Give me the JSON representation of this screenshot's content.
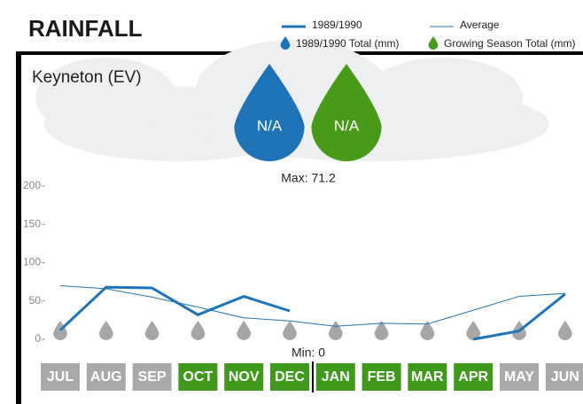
{
  "chart_data": {
    "type": "line",
    "title": "RAINFALL",
    "subtitle": "Keyneton (EV)",
    "categories": [
      "JUL",
      "AUG",
      "SEP",
      "OCT",
      "NOV",
      "DEC",
      "JAN",
      "FEB",
      "MAR",
      "APR",
      "MAY",
      "JUN"
    ],
    "category_colors": [
      "#a9a9a9",
      "#a9a9a9",
      "#a9a9a9",
      "#3f9a1c",
      "#3f9a1c",
      "#3f9a1c",
      "#3f9a1c",
      "#3f9a1c",
      "#3f9a1c",
      "#3f9a1c",
      "#a9a9a9",
      "#a9a9a9"
    ],
    "series": [
      {
        "name": "1989/1990",
        "color": "#1f73b7",
        "width": 3,
        "values": [
          12,
          68,
          67,
          32,
          56,
          37,
          null,
          null,
          null,
          0,
          11,
          59
        ]
      },
      {
        "name": "Average",
        "color": "#1f73b7",
        "width": 1,
        "values": [
          70,
          66,
          55,
          42,
          28,
          24,
          17,
          21,
          20,
          38,
          56,
          60
        ]
      }
    ],
    "totals": [
      {
        "name": "1989/1990 Total (mm)",
        "color": "#1f73b7",
        "label": "N/A"
      },
      {
        "name": "Growing Season Total (mm)",
        "color": "#4a9a1a",
        "label": "N/A"
      }
    ],
    "annotations": [
      "Max: 71.2",
      "Min: 0"
    ],
    "ylim": [
      0,
      200
    ],
    "yticks": [
      0,
      50,
      100,
      150,
      200
    ]
  }
}
